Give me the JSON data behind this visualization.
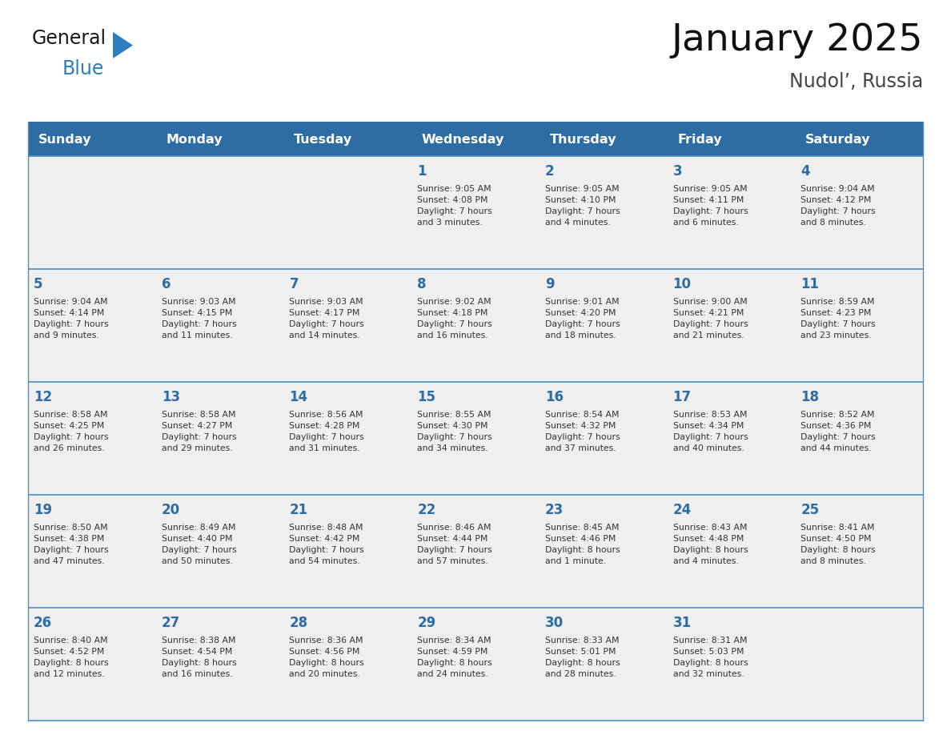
{
  "title": "January 2025",
  "subtitle": "Nudol’, Russia",
  "header_color": "#2E6DA4",
  "header_text_color": "#FFFFFF",
  "cell_bg_color": "#EFEFEF",
  "border_color": "#2E6DA4",
  "row_line_color": "#4A90C4",
  "text_color": "#333333",
  "day_num_color": "#2E6DA4",
  "days_of_week": [
    "Sunday",
    "Monday",
    "Tuesday",
    "Wednesday",
    "Thursday",
    "Friday",
    "Saturday"
  ],
  "weeks": [
    [
      {
        "day": null,
        "info": null
      },
      {
        "day": null,
        "info": null
      },
      {
        "day": null,
        "info": null
      },
      {
        "day": "1",
        "info": "Sunrise: 9:05 AM\nSunset: 4:08 PM\nDaylight: 7 hours\nand 3 minutes."
      },
      {
        "day": "2",
        "info": "Sunrise: 9:05 AM\nSunset: 4:10 PM\nDaylight: 7 hours\nand 4 minutes."
      },
      {
        "day": "3",
        "info": "Sunrise: 9:05 AM\nSunset: 4:11 PM\nDaylight: 7 hours\nand 6 minutes."
      },
      {
        "day": "4",
        "info": "Sunrise: 9:04 AM\nSunset: 4:12 PM\nDaylight: 7 hours\nand 8 minutes."
      }
    ],
    [
      {
        "day": "5",
        "info": "Sunrise: 9:04 AM\nSunset: 4:14 PM\nDaylight: 7 hours\nand 9 minutes."
      },
      {
        "day": "6",
        "info": "Sunrise: 9:03 AM\nSunset: 4:15 PM\nDaylight: 7 hours\nand 11 minutes."
      },
      {
        "day": "7",
        "info": "Sunrise: 9:03 AM\nSunset: 4:17 PM\nDaylight: 7 hours\nand 14 minutes."
      },
      {
        "day": "8",
        "info": "Sunrise: 9:02 AM\nSunset: 4:18 PM\nDaylight: 7 hours\nand 16 minutes."
      },
      {
        "day": "9",
        "info": "Sunrise: 9:01 AM\nSunset: 4:20 PM\nDaylight: 7 hours\nand 18 minutes."
      },
      {
        "day": "10",
        "info": "Sunrise: 9:00 AM\nSunset: 4:21 PM\nDaylight: 7 hours\nand 21 minutes."
      },
      {
        "day": "11",
        "info": "Sunrise: 8:59 AM\nSunset: 4:23 PM\nDaylight: 7 hours\nand 23 minutes."
      }
    ],
    [
      {
        "day": "12",
        "info": "Sunrise: 8:58 AM\nSunset: 4:25 PM\nDaylight: 7 hours\nand 26 minutes."
      },
      {
        "day": "13",
        "info": "Sunrise: 8:58 AM\nSunset: 4:27 PM\nDaylight: 7 hours\nand 29 minutes."
      },
      {
        "day": "14",
        "info": "Sunrise: 8:56 AM\nSunset: 4:28 PM\nDaylight: 7 hours\nand 31 minutes."
      },
      {
        "day": "15",
        "info": "Sunrise: 8:55 AM\nSunset: 4:30 PM\nDaylight: 7 hours\nand 34 minutes."
      },
      {
        "day": "16",
        "info": "Sunrise: 8:54 AM\nSunset: 4:32 PM\nDaylight: 7 hours\nand 37 minutes."
      },
      {
        "day": "17",
        "info": "Sunrise: 8:53 AM\nSunset: 4:34 PM\nDaylight: 7 hours\nand 40 minutes."
      },
      {
        "day": "18",
        "info": "Sunrise: 8:52 AM\nSunset: 4:36 PM\nDaylight: 7 hours\nand 44 minutes."
      }
    ],
    [
      {
        "day": "19",
        "info": "Sunrise: 8:50 AM\nSunset: 4:38 PM\nDaylight: 7 hours\nand 47 minutes."
      },
      {
        "day": "20",
        "info": "Sunrise: 8:49 AM\nSunset: 4:40 PM\nDaylight: 7 hours\nand 50 minutes."
      },
      {
        "day": "21",
        "info": "Sunrise: 8:48 AM\nSunset: 4:42 PM\nDaylight: 7 hours\nand 54 minutes."
      },
      {
        "day": "22",
        "info": "Sunrise: 8:46 AM\nSunset: 4:44 PM\nDaylight: 7 hours\nand 57 minutes."
      },
      {
        "day": "23",
        "info": "Sunrise: 8:45 AM\nSunset: 4:46 PM\nDaylight: 8 hours\nand 1 minute."
      },
      {
        "day": "24",
        "info": "Sunrise: 8:43 AM\nSunset: 4:48 PM\nDaylight: 8 hours\nand 4 minutes."
      },
      {
        "day": "25",
        "info": "Sunrise: 8:41 AM\nSunset: 4:50 PM\nDaylight: 8 hours\nand 8 minutes."
      }
    ],
    [
      {
        "day": "26",
        "info": "Sunrise: 8:40 AM\nSunset: 4:52 PM\nDaylight: 8 hours\nand 12 minutes."
      },
      {
        "day": "27",
        "info": "Sunrise: 8:38 AM\nSunset: 4:54 PM\nDaylight: 8 hours\nand 16 minutes."
      },
      {
        "day": "28",
        "info": "Sunrise: 8:36 AM\nSunset: 4:56 PM\nDaylight: 8 hours\nand 20 minutes."
      },
      {
        "day": "29",
        "info": "Sunrise: 8:34 AM\nSunset: 4:59 PM\nDaylight: 8 hours\nand 24 minutes."
      },
      {
        "day": "30",
        "info": "Sunrise: 8:33 AM\nSunset: 5:01 PM\nDaylight: 8 hours\nand 28 minutes."
      },
      {
        "day": "31",
        "info": "Sunrise: 8:31 AM\nSunset: 5:03 PM\nDaylight: 8 hours\nand 32 minutes."
      },
      {
        "day": null,
        "info": null
      }
    ]
  ],
  "logo_general_color": "#1a1a1a",
  "logo_blue_color": "#2E7EC2",
  "logo_triangle_color": "#2E7EC2",
  "fig_width": 11.88,
  "fig_height": 9.18,
  "dpi": 100
}
